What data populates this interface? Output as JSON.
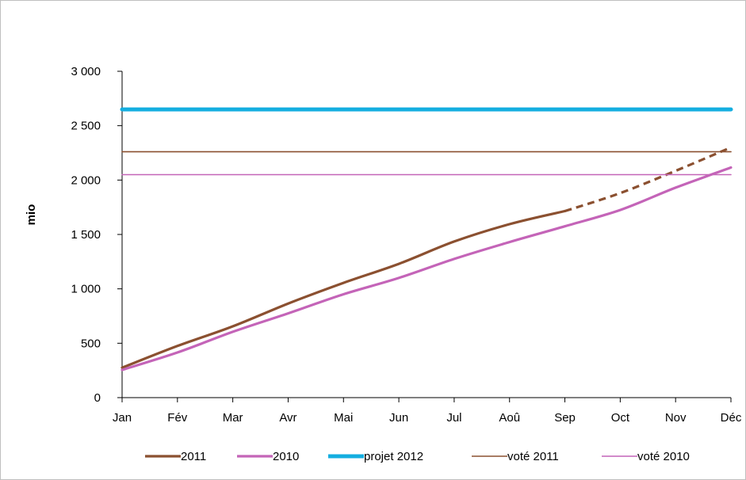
{
  "chart_data": {
    "type": "line",
    "title": "",
    "xlabel": "",
    "ylabel": "mio",
    "ylim": [
      0,
      3000
    ],
    "yticks": [
      0,
      500,
      1000,
      1500,
      2000,
      2500,
      3000
    ],
    "ytick_labels": [
      "0",
      "500",
      "1 000",
      "1 500",
      "2 000",
      "2 500",
      "3 000"
    ],
    "categories": [
      "Jan",
      "Fév",
      "Mar",
      "Avr",
      "Mai",
      "Jun",
      "Jul",
      "Aoû",
      "Sep",
      "Oct",
      "Nov",
      "Déc"
    ],
    "grid": false,
    "legend_position": "bottom",
    "series": [
      {
        "name": "2011",
        "color": "#8B5030",
        "style": "solid-then-dashed",
        "dashed_from_index": 8,
        "values": [
          275,
          475,
          655,
          865,
          1055,
          1230,
          1435,
          1595,
          1715,
          1880,
          2085,
          2300
        ]
      },
      {
        "name": "2010",
        "color": "#C464B8",
        "style": "solid",
        "values": [
          255,
          415,
          605,
          775,
          950,
          1100,
          1275,
          1430,
          1575,
          1725,
          1930,
          2115
        ]
      },
      {
        "name": "projet 2012",
        "color": "#14AEE0",
        "style": "thick",
        "values": [
          2650,
          2650,
          2650,
          2650,
          2650,
          2650,
          2650,
          2650,
          2650,
          2650,
          2650,
          2650
        ]
      },
      {
        "name": "voté 2011",
        "color": "#8B5030",
        "style": "thin",
        "values": [
          2260,
          2260,
          2260,
          2260,
          2260,
          2260,
          2260,
          2260,
          2260,
          2260,
          2260,
          2260
        ]
      },
      {
        "name": "voté 2010",
        "color": "#C464B8",
        "style": "thin",
        "values": [
          2050,
          2050,
          2050,
          2050,
          2050,
          2050,
          2050,
          2050,
          2050,
          2050,
          2050,
          2050
        ]
      }
    ]
  }
}
